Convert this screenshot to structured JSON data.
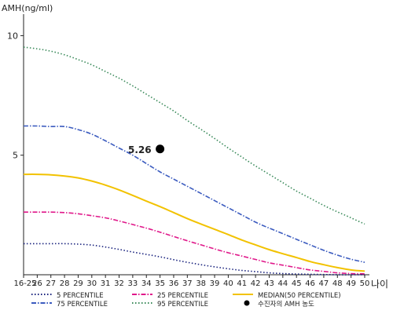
{
  "chart_data": {
    "type": "line",
    "ylabel": "AMH(ng/ml)",
    "xlabel": "나이",
    "categories": [
      "16-25",
      "26",
      "27",
      "28",
      "29",
      "30",
      "31",
      "32",
      "33",
      "34",
      "35",
      "36",
      "37",
      "38",
      "39",
      "40",
      "41",
      "42",
      "43",
      "44",
      "45",
      "46",
      "47",
      "48",
      "49",
      "50"
    ],
    "ylim": [
      0,
      10.9
    ],
    "yticks": [
      {
        "value": 5,
        "label": "5"
      },
      {
        "value": 10,
        "label": "10"
      }
    ],
    "grid": false,
    "legend_position": "bottom",
    "series": [
      {
        "name": "95 PERCENTILE",
        "color": "#3a8a5a",
        "dash": "1.5,2.5",
        "values": [
          9.52,
          9.45,
          9.35,
          9.2,
          9.0,
          8.78,
          8.5,
          8.22,
          7.9,
          7.55,
          7.2,
          6.85,
          6.45,
          6.08,
          5.7,
          5.3,
          4.92,
          4.55,
          4.2,
          3.85,
          3.5,
          3.2,
          2.9,
          2.63,
          2.38,
          2.12
        ]
      },
      {
        "name": "75 PERCENTILE",
        "color": "#3b5bbf",
        "dash": "6,2,1.5,2",
        "values": [
          6.22,
          6.22,
          6.2,
          6.2,
          6.07,
          5.88,
          5.6,
          5.3,
          5.0,
          4.65,
          4.3,
          4.0,
          3.7,
          3.4,
          3.1,
          2.8,
          2.5,
          2.2,
          1.95,
          1.72,
          1.48,
          1.25,
          1.02,
          0.82,
          0.65,
          0.52
        ]
      },
      {
        "name": "MEDIAN(50 PERCENTILE)",
        "color": "#f2c200",
        "dash": "",
        "values": [
          4.2,
          4.2,
          4.18,
          4.13,
          4.05,
          3.92,
          3.75,
          3.55,
          3.32,
          3.08,
          2.85,
          2.6,
          2.35,
          2.12,
          1.9,
          1.68,
          1.45,
          1.25,
          1.05,
          0.88,
          0.72,
          0.55,
          0.42,
          0.3,
          0.2,
          0.15
        ]
      },
      {
        "name": "25 PERCENTILE",
        "color": "#e0188a",
        "dash": "6,2,1.5,2",
        "values": [
          2.62,
          2.62,
          2.62,
          2.6,
          2.55,
          2.47,
          2.38,
          2.25,
          2.1,
          1.95,
          1.78,
          1.6,
          1.42,
          1.25,
          1.08,
          0.92,
          0.78,
          0.64,
          0.5,
          0.4,
          0.3,
          0.2,
          0.14,
          0.08,
          0.05,
          0.04
        ]
      },
      {
        "name": "5 PERCENTILE",
        "color": "#1a237e",
        "dash": "1.5,2.5",
        "values": [
          1.3,
          1.3,
          1.3,
          1.3,
          1.28,
          1.24,
          1.16,
          1.06,
          0.95,
          0.85,
          0.75,
          0.63,
          0.52,
          0.42,
          0.33,
          0.25,
          0.18,
          0.13,
          0.08,
          0.05,
          0.03,
          0.02,
          0.01,
          0.0,
          0.0,
          0.0
        ]
      }
    ],
    "points": [
      {
        "name": "수진자의 AMH 농도",
        "x": "35",
        "y": 5.26,
        "label": "5.26",
        "color": "#000000"
      }
    ],
    "legend": [
      {
        "label": "5 PERCENTILE",
        "color": "#1a237e",
        "dash": "1.5,2.5",
        "marker": false
      },
      {
        "label": "25 PERCENTILE",
        "color": "#e0188a",
        "dash": "6,2,1.5,2",
        "marker": false
      },
      {
        "label": "MEDIAN(50 PERCENTILE)",
        "color": "#f2c200",
        "dash": "",
        "marker": false
      },
      {
        "label": "75 PERCENTILE",
        "color": "#3b5bbf",
        "dash": "6,2,1.5,2",
        "marker": false
      },
      {
        "label": "95 PERCENTILE",
        "color": "#3a8a5a",
        "dash": "1.5,2.5",
        "marker": false
      },
      {
        "label": "수진자의 AMH 농도",
        "color": "#000000",
        "dash": "",
        "marker": true
      }
    ]
  }
}
